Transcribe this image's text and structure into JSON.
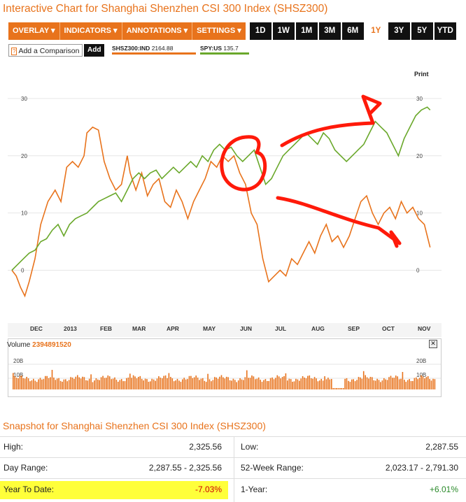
{
  "header": {
    "title": "Interactive Chart for Shanghai Shenzhen CSI 300 Index (SHSZ300)"
  },
  "toolbar": {
    "menus": [
      {
        "label": "OVERLAY ▾"
      },
      {
        "label": "INDICATORS ▾"
      },
      {
        "label": "ANNOTATIONS ▾"
      },
      {
        "label": "SETTINGS ▾"
      }
    ],
    "ranges": [
      "1D",
      "1W",
      "1M",
      "3M",
      "6M",
      "1Y",
      "3Y",
      "5Y",
      "YTD"
    ],
    "active_range": "1Y"
  },
  "compare": {
    "help_icon": "?",
    "placeholder": "Add a Comparison",
    "add_label": "Add"
  },
  "legend": [
    {
      "symbol": "SHSZ300:IND",
      "value": "2164.88",
      "color": "#e8731c"
    },
    {
      "symbol": "SPY:US",
      "value": "135.7",
      "color": "#6aa82b"
    }
  ],
  "print_label": "Print",
  "chart_data": {
    "type": "line",
    "y_ticks": [
      "0",
      "10",
      "20",
      "30"
    ],
    "ylim": [
      -8,
      35
    ],
    "x_ticks": [
      "DEC",
      "2013",
      "FEB",
      "MAR",
      "APR",
      "MAY",
      "JUN",
      "JUL",
      "AUG",
      "SEP",
      "OCT",
      "NOV"
    ],
    "series": [
      {
        "name": "SHSZ300:IND",
        "color": "#e8731c",
        "values": [
          [
            0,
            0
          ],
          [
            0.3,
            -1
          ],
          [
            0.6,
            -3
          ],
          [
            0.9,
            -4.5
          ],
          [
            1.2,
            -2
          ],
          [
            1.6,
            2
          ],
          [
            2.0,
            8
          ],
          [
            2.5,
            12
          ],
          [
            3.0,
            14
          ],
          [
            3.4,
            12
          ],
          [
            3.8,
            18
          ],
          [
            4.2,
            19
          ],
          [
            4.6,
            18
          ],
          [
            5.0,
            20
          ],
          [
            5.2,
            24
          ],
          [
            5.6,
            25
          ],
          [
            6.0,
            24.5
          ],
          [
            6.4,
            19
          ],
          [
            6.8,
            16
          ],
          [
            7.2,
            14
          ],
          [
            7.6,
            15
          ],
          [
            8.0,
            20
          ],
          [
            8.2,
            17
          ],
          [
            8.6,
            14
          ],
          [
            9.0,
            17
          ],
          [
            9.4,
            13
          ],
          [
            9.8,
            15
          ],
          [
            10.2,
            16
          ],
          [
            10.6,
            12
          ],
          [
            11.0,
            11
          ],
          [
            11.4,
            14
          ],
          [
            11.8,
            12
          ],
          [
            12.2,
            9
          ],
          [
            12.6,
            12
          ],
          [
            13.0,
            14
          ],
          [
            13.4,
            16
          ],
          [
            13.8,
            19
          ],
          [
            14.2,
            18
          ],
          [
            14.6,
            20
          ],
          [
            15.0,
            19
          ],
          [
            15.4,
            20
          ],
          [
            15.8,
            17
          ],
          [
            16.2,
            15
          ],
          [
            16.6,
            10
          ],
          [
            17.0,
            8
          ],
          [
            17.4,
            2
          ],
          [
            17.8,
            -2
          ],
          [
            18.2,
            -1
          ],
          [
            18.6,
            0
          ],
          [
            19.0,
            -1
          ],
          [
            19.4,
            2
          ],
          [
            19.8,
            1
          ],
          [
            20.2,
            3
          ],
          [
            20.6,
            5
          ],
          [
            21.0,
            3
          ],
          [
            21.4,
            6
          ],
          [
            21.8,
            8
          ],
          [
            22.2,
            5
          ],
          [
            22.6,
            6
          ],
          [
            23.0,
            4
          ],
          [
            23.4,
            6
          ],
          [
            23.8,
            9
          ],
          [
            24.2,
            12
          ],
          [
            24.6,
            13
          ],
          [
            25.0,
            10
          ],
          [
            25.4,
            8
          ],
          [
            25.8,
            10
          ],
          [
            26.2,
            11
          ],
          [
            26.6,
            9
          ],
          [
            27.0,
            12
          ],
          [
            27.4,
            10
          ],
          [
            27.8,
            11
          ],
          [
            28.2,
            9
          ],
          [
            28.6,
            8
          ],
          [
            29.0,
            4
          ]
        ]
      },
      {
        "name": "SPY:US",
        "color": "#6aa82b",
        "values": [
          [
            0,
            0
          ],
          [
            0.4,
            1
          ],
          [
            0.8,
            2
          ],
          [
            1.2,
            3
          ],
          [
            1.6,
            3.5
          ],
          [
            2.0,
            5
          ],
          [
            2.4,
            5.5
          ],
          [
            2.8,
            7
          ],
          [
            3.2,
            8
          ],
          [
            3.6,
            6
          ],
          [
            4.0,
            8
          ],
          [
            4.4,
            9
          ],
          [
            4.8,
            9.5
          ],
          [
            5.2,
            10
          ],
          [
            5.6,
            11
          ],
          [
            6.0,
            12
          ],
          [
            6.4,
            12.5
          ],
          [
            6.8,
            13
          ],
          [
            7.2,
            13.5
          ],
          [
            7.6,
            12
          ],
          [
            8.0,
            14
          ],
          [
            8.4,
            16
          ],
          [
            8.8,
            17
          ],
          [
            9.2,
            16
          ],
          [
            9.6,
            17
          ],
          [
            10.0,
            17.5
          ],
          [
            10.4,
            16
          ],
          [
            10.8,
            17
          ],
          [
            11.2,
            18
          ],
          [
            11.6,
            17
          ],
          [
            12.0,
            18
          ],
          [
            12.4,
            19
          ],
          [
            12.8,
            18
          ],
          [
            13.2,
            20
          ],
          [
            13.6,
            19
          ],
          [
            14.0,
            21
          ],
          [
            14.4,
            22
          ],
          [
            14.8,
            21
          ],
          [
            15.2,
            21.5
          ],
          [
            15.6,
            20
          ],
          [
            16.0,
            19
          ],
          [
            16.4,
            20
          ],
          [
            16.8,
            21
          ],
          [
            17.2,
            18
          ],
          [
            17.6,
            15
          ],
          [
            18.0,
            16
          ],
          [
            18.4,
            18
          ],
          [
            18.8,
            20
          ],
          [
            19.2,
            21
          ],
          [
            19.6,
            22
          ],
          [
            20.0,
            23
          ],
          [
            20.4,
            24
          ],
          [
            20.8,
            23
          ],
          [
            21.2,
            22
          ],
          [
            21.6,
            24
          ],
          [
            22.0,
            23
          ],
          [
            22.4,
            21
          ],
          [
            22.8,
            20
          ],
          [
            23.2,
            19
          ],
          [
            23.6,
            20
          ],
          [
            24.0,
            21
          ],
          [
            24.4,
            22
          ],
          [
            24.8,
            24
          ],
          [
            25.2,
            26
          ],
          [
            25.6,
            25
          ],
          [
            26.0,
            24
          ],
          [
            26.4,
            22
          ],
          [
            26.8,
            20
          ],
          [
            27.2,
            23
          ],
          [
            27.6,
            25
          ],
          [
            28.0,
            27
          ],
          [
            28.4,
            28
          ],
          [
            28.8,
            28.5
          ],
          [
            29.0,
            28
          ]
        ]
      }
    ]
  },
  "volume": {
    "label": "Volume",
    "value": "2394891520",
    "ticks": [
      "20B",
      "10B"
    ]
  },
  "snapshot": {
    "title": "Snapshot for Shanghai Shenzhen CSI 300 Index (SHSZ300)",
    "left": [
      {
        "label": "High:",
        "value": "2,325.56"
      },
      {
        "label": "Day Range:",
        "value": "2,287.55 - 2,325.56"
      },
      {
        "label": "Year To Date:",
        "value": "-7.03%",
        "color": "#cc0000"
      }
    ],
    "right": [
      {
        "label": "Low:",
        "value": "2,287.55"
      },
      {
        "label": "52-Week Range:",
        "value": "2,023.17 - 2,791.30"
      },
      {
        "label": "1-Year:",
        "value": "+6.01%",
        "color": "#2a8a2a"
      }
    ]
  }
}
